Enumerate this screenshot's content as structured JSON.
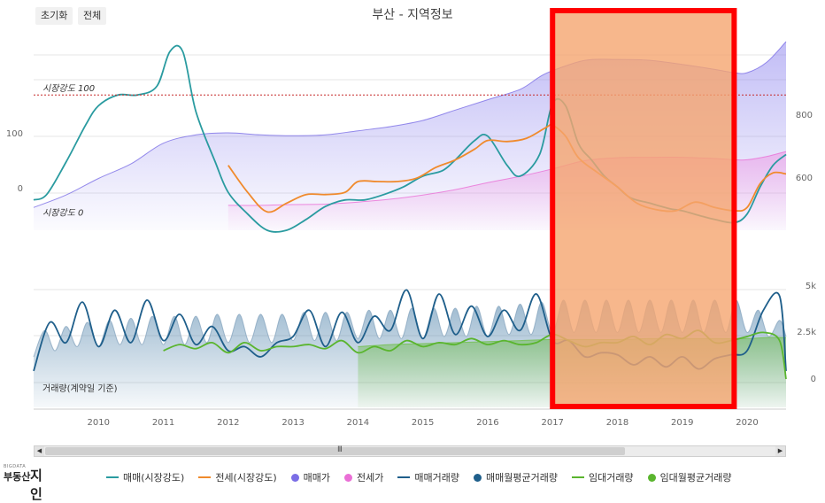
{
  "toolbar": {
    "reset_label": "초기화",
    "all_label": "전체"
  },
  "title": "부산 - 지역정보",
  "annotations": {
    "strength100": "시장강도 100",
    "strength0": "시장강도 0",
    "volume_label": "거래량(계약일 기준)"
  },
  "axis_labels": {
    "left": [
      "100",
      "0"
    ],
    "right_price": [
      "800",
      "600"
    ],
    "right_volume": [
      "5k",
      "2.5k",
      "0"
    ]
  },
  "legend": [
    {
      "label": "매매(시장강도)",
      "color": "#2a9ba0",
      "kind": "line"
    },
    {
      "label": "전세(시장강도)",
      "color": "#f08a2c",
      "kind": "line"
    },
    {
      "label": "매매가",
      "color": "#7b6ee6",
      "kind": "dot"
    },
    {
      "label": "전세가",
      "color": "#ea6fd6",
      "kind": "dot"
    },
    {
      "label": "매매거래량",
      "color": "#1f5f8b",
      "kind": "line"
    },
    {
      "label": "매매월평균거래량",
      "color": "#1f5f8b",
      "kind": "dot"
    },
    {
      "label": "임대거래량",
      "color": "#5ab52e",
      "kind": "line"
    },
    {
      "label": "임대월평균거래량",
      "color": "#5ab52e",
      "kind": "dot"
    }
  ],
  "colors": {
    "sale_strength": "#2a9ba0",
    "jeonse_strength": "#f08a2c",
    "sale_price": "#7b6ee6",
    "jeonse_price": "#ea6fd6",
    "sale_volume": "#1f5f8b",
    "lease_volume": "#5ab52e",
    "highlight_fill": "#f5a56f",
    "highlight_border": "#ff0000",
    "ref_line": "#c62828"
  },
  "chart_data": {
    "type": "line",
    "x_ticks": [
      "2010",
      "2011",
      "2012",
      "2013",
      "2014",
      "2015",
      "2016",
      "2017",
      "2018",
      "2019",
      "2020"
    ],
    "x_range": [
      2009.0,
      2020.6
    ],
    "strength_ylim": [
      -25,
      155
    ],
    "price_ylim": [
      500,
      970
    ],
    "volume_ylim": [
      0,
      7000
    ],
    "reference_lines": [
      {
        "label": "시장강도 100",
        "value": 100
      },
      {
        "label": "시장강도 0",
        "value": 0
      }
    ],
    "highlight": {
      "from": 2017.0,
      "to": 2019.8
    },
    "series": [
      {
        "name": "매매(시장강도)",
        "axis": "strength",
        "style": "line",
        "x": [
          2009.0,
          2009.2,
          2009.5,
          2009.8,
          2010.0,
          2010.3,
          2010.6,
          2010.9,
          2011.1,
          2011.3,
          2011.5,
          2011.8,
          2012.0,
          2012.3,
          2012.6,
          2012.9,
          2013.2,
          2013.5,
          2013.8,
          2014.1,
          2014.4,
          2014.7,
          2015.0,
          2015.3,
          2015.5,
          2015.8,
          2016.0,
          2016.3,
          2016.5,
          2016.8,
          2017.0,
          2017.2,
          2017.4,
          2017.6,
          2017.8,
          2018.0,
          2018.2,
          2018.5,
          2018.8,
          2019.0,
          2019.3,
          2019.5,
          2019.8,
          2020.0,
          2020.2,
          2020.4,
          2020.6
        ],
        "y": [
          3,
          8,
          38,
          72,
          90,
          100,
          100,
          108,
          140,
          140,
          85,
          38,
          10,
          -10,
          -25,
          -25,
          -15,
          -3,
          3,
          3,
          8,
          15,
          25,
          30,
          40,
          58,
          62,
          35,
          25,
          45,
          92,
          90,
          55,
          40,
          25,
          15,
          5,
          0,
          -5,
          -7,
          -12,
          -15,
          -18,
          -10,
          15,
          35,
          45
        ]
      },
      {
        "name": "전세(시장강도)",
        "axis": "strength",
        "style": "line",
        "x": [
          2012.0,
          2012.3,
          2012.6,
          2012.9,
          2013.2,
          2013.5,
          2013.8,
          2014.0,
          2014.3,
          2014.6,
          2014.9,
          2015.2,
          2015.5,
          2015.8,
          2016.0,
          2016.3,
          2016.6,
          2016.9,
          2017.0,
          2017.2,
          2017.4,
          2017.7,
          2018.0,
          2018.3,
          2018.6,
          2018.9,
          2019.2,
          2019.5,
          2019.8,
          2020.0,
          2020.2,
          2020.4,
          2020.6
        ],
        "y": [
          35,
          10,
          -8,
          0,
          8,
          8,
          10,
          20,
          20,
          20,
          23,
          33,
          40,
          50,
          58,
          57,
          60,
          70,
          72,
          62,
          42,
          28,
          15,
          0,
          -6,
          -7,
          1,
          -4,
          -7,
          -4,
          18,
          28,
          27
        ]
      },
      {
        "name": "매매가",
        "axis": "price",
        "style": "area",
        "x": [
          2009.0,
          2009.5,
          2010.0,
          2010.5,
          2011.0,
          2011.5,
          2012.0,
          2012.5,
          2013.0,
          2013.5,
          2014.0,
          2014.5,
          2015.0,
          2015.5,
          2016.0,
          2016.5,
          2016.8,
          2017.0,
          2017.5,
          2018.0,
          2018.5,
          2019.0,
          2019.5,
          2019.8,
          2020.0,
          2020.3,
          2020.6
        ],
        "y": [
          555,
          585,
          625,
          660,
          710,
          730,
          735,
          730,
          728,
          730,
          740,
          750,
          765,
          790,
          815,
          840,
          870,
          885,
          910,
          912,
          910,
          900,
          888,
          880,
          880,
          905,
          955
        ]
      },
      {
        "name": "전세가",
        "axis": "price",
        "style": "area",
        "x": [
          2012.0,
          2012.5,
          2013.0,
          2013.5,
          2014.0,
          2014.5,
          2015.0,
          2015.5,
          2016.0,
          2016.5,
          2017.0,
          2017.5,
          2018.0,
          2018.5,
          2019.0,
          2019.5,
          2019.8,
          2020.0,
          2020.3,
          2020.6
        ],
        "y": [
          560,
          560,
          562,
          563,
          568,
          575,
          585,
          598,
          615,
          630,
          648,
          668,
          675,
          676,
          676,
          673,
          670,
          670,
          678,
          690
        ]
      },
      {
        "name": "매매거래량",
        "axis": "volume",
        "style": "line",
        "x": [
          2009.0,
          2009.25,
          2009.5,
          2009.75,
          2010.0,
          2010.25,
          2010.5,
          2010.75,
          2011.0,
          2011.25,
          2011.5,
          2011.75,
          2012.0,
          2012.25,
          2012.5,
          2012.75,
          2013.0,
          2013.25,
          2013.5,
          2013.75,
          2014.0,
          2014.25,
          2014.5,
          2014.75,
          2015.0,
          2015.25,
          2015.5,
          2015.75,
          2016.0,
          2016.25,
          2016.5,
          2016.75,
          2017.0,
          2017.25,
          2017.5,
          2017.75,
          2018.0,
          2018.25,
          2018.5,
          2018.75,
          2019.0,
          2019.25,
          2019.5,
          2019.75,
          2020.0,
          2020.25,
          2020.5,
          2020.6
        ],
        "y": [
          1800,
          4200,
          3200,
          5200,
          3000,
          4800,
          3200,
          5300,
          3300,
          4600,
          3100,
          4000,
          2800,
          3000,
          2500,
          3200,
          3500,
          4800,
          3000,
          4700,
          3200,
          4500,
          3800,
          5800,
          3400,
          5600,
          3600,
          5000,
          3500,
          4800,
          3800,
          5600,
          3300,
          3300,
          2500,
          2700,
          2600,
          2100,
          2500,
          2000,
          2500,
          1900,
          2400,
          2600,
          2800,
          4800,
          5500,
          1800
        ]
      },
      {
        "name": "매매월평균거래량",
        "axis": "volume",
        "style": "area",
        "x": [
          2009.0,
          2009.17,
          2009.33,
          2009.5,
          2009.67,
          2009.83,
          2010.0,
          2010.17,
          2010.33,
          2010.5,
          2010.67,
          2010.83,
          2011.0,
          2011.17,
          2011.33,
          2011.5,
          2011.67,
          2011.83,
          2012.0,
          2012.17,
          2012.33,
          2012.5,
          2012.67,
          2012.83,
          2013.0,
          2013.17,
          2013.33,
          2013.5,
          2013.67,
          2013.83,
          2014.0,
          2014.17,
          2014.33,
          2014.5,
          2014.67,
          2014.83,
          2015.0,
          2015.17,
          2015.33,
          2015.5,
          2015.67,
          2015.83,
          2016.0,
          2016.17,
          2016.33,
          2016.5,
          2016.67,
          2016.83,
          2017.0,
          2017.17,
          2017.33,
          2017.5,
          2017.67,
          2017.83,
          2018.0,
          2018.17,
          2018.33,
          2018.5,
          2018.67,
          2018.83,
          2019.0,
          2019.17,
          2019.33,
          2019.5,
          2019.67,
          2019.83,
          2020.0,
          2020.17,
          2020.33,
          2020.5,
          2020.6
        ],
        "y": [
          2500,
          3800,
          2800,
          4000,
          3000,
          4200,
          3000,
          4300,
          3100,
          4400,
          3100,
          4500,
          3100,
          4500,
          3100,
          4500,
          3200,
          4600,
          3200,
          4600,
          3200,
          4600,
          3200,
          4600,
          3300,
          4700,
          3300,
          4700,
          3300,
          4700,
          3400,
          4800,
          3400,
          4800,
          3400,
          4900,
          3400,
          4900,
          3500,
          4900,
          3500,
          5000,
          3500,
          5000,
          3600,
          5100,
          3600,
          5200,
          3700,
          5300,
          3700,
          5300,
          3700,
          5300,
          3700,
          5300,
          3700,
          5300,
          3700,
          5300,
          3700,
          5300,
          3700,
          5300,
          3700,
          5300,
          3700,
          4800,
          3500,
          4300,
          3500
        ]
      },
      {
        "name": "임대거래량",
        "axis": "volume",
        "style": "line",
        "x": [
          2011.0,
          2011.25,
          2011.5,
          2011.75,
          2012.0,
          2012.25,
          2012.5,
          2012.75,
          2013.0,
          2013.25,
          2013.5,
          2013.75,
          2014.0,
          2014.25,
          2014.5,
          2014.75,
          2015.0,
          2015.25,
          2015.5,
          2015.75,
          2016.0,
          2016.25,
          2016.5,
          2016.75,
          2017.0,
          2017.25,
          2017.5,
          2017.75,
          2018.0,
          2018.25,
          2018.5,
          2018.75,
          2019.0,
          2019.25,
          2019.5,
          2019.75,
          2020.0,
          2020.25,
          2020.5,
          2020.6
        ],
        "y": [
          2800,
          3100,
          2900,
          3200,
          2700,
          3200,
          2800,
          3000,
          3000,
          3100,
          2900,
          3300,
          2700,
          3000,
          2800,
          3300,
          3000,
          3200,
          3100,
          3400,
          3100,
          3300,
          3100,
          3200,
          3600,
          3300,
          3000,
          3200,
          3200,
          3500,
          3100,
          3600,
          3400,
          3800,
          3200,
          3300,
          3500,
          3700,
          3300,
          1400
        ]
      },
      {
        "name": "임대월평균거래량",
        "axis": "volume",
        "style": "area",
        "x": [
          2014.0,
          2014.5,
          2015.0,
          2015.5,
          2016.0,
          2016.5,
          2017.0,
          2017.5,
          2018.0,
          2018.5,
          2019.0,
          2019.5,
          2020.0,
          2020.3,
          2020.6
        ],
        "y": [
          3000,
          3100,
          3150,
          3200,
          3250,
          3300,
          3350,
          3350,
          3350,
          3400,
          3400,
          3400,
          3400,
          3450,
          3450
        ]
      }
    ]
  }
}
